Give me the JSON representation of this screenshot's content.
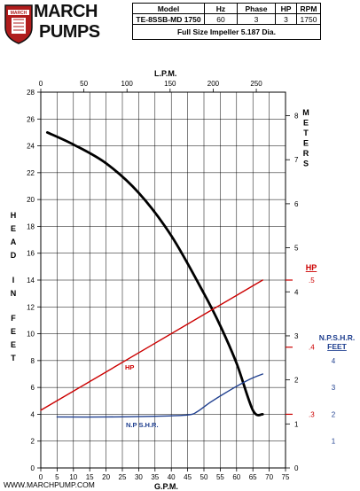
{
  "brand": {
    "line1": "MARCH",
    "line2": "PUMPS",
    "badge": "MARCH"
  },
  "spec_table": {
    "headers": [
      "Model",
      "Hz",
      "Phase",
      "HP",
      "RPM"
    ],
    "row": [
      "TE-8SSB-MD 1750",
      "60",
      "3",
      "3",
      "1750"
    ],
    "impeller": "Full Size Impeller 5.187 Dia."
  },
  "footer_url": "WWW.MARCHPUMP.COM",
  "colors": {
    "head": "#000000",
    "hp": "#cc0000",
    "npshr": "#1f3f8f"
  },
  "chart_data": {
    "type": "line",
    "x_label": "G.P.M.",
    "x_ticks": [
      0,
      5,
      10,
      15,
      20,
      25,
      30,
      35,
      40,
      45,
      50,
      55,
      60,
      65,
      70,
      75
    ],
    "xlim": [
      0,
      75
    ],
    "top_label": "L.P.M.",
    "top_ticks": [
      0,
      50,
      100,
      150,
      200,
      250
    ],
    "y_label": "HEAD IN FEET",
    "y_ticks": [
      0,
      2,
      4,
      6,
      8,
      10,
      12,
      14,
      16,
      18,
      20,
      22,
      24,
      26,
      28
    ],
    "ylim": [
      0,
      28
    ],
    "right_label": "METERS",
    "right_ticks": [
      0,
      1,
      2,
      3,
      4,
      5,
      6,
      7,
      8
    ],
    "hp_label": "HP",
    "hp_ticks": [
      ".3",
      ".4",
      ".5"
    ],
    "npshr_axis_label": [
      "N.P.S.H.R.",
      "FEET"
    ],
    "npshr_ticks": [
      "1",
      "2",
      "3",
      "4"
    ],
    "grid": true,
    "series": [
      {
        "name": "HEAD",
        "points": [
          [
            2,
            25
          ],
          [
            10,
            24.1
          ],
          [
            20,
            22.7
          ],
          [
            30,
            20.5
          ],
          [
            40,
            17.3
          ],
          [
            50,
            13
          ],
          [
            55,
            10.6
          ],
          [
            60,
            7.8
          ],
          [
            65,
            4.3
          ],
          [
            68,
            4
          ]
        ]
      },
      {
        "name": "HP",
        "points": [
          [
            0,
            4.3
          ],
          [
            68,
            14
          ]
        ]
      },
      {
        "name": "N.P S.H.R.",
        "points": [
          [
            5,
            3.8
          ],
          [
            20,
            3.8
          ],
          [
            35,
            3.85
          ],
          [
            45,
            3.95
          ],
          [
            48,
            4.2
          ],
          [
            52,
            4.9
          ],
          [
            58,
            5.8
          ],
          [
            64,
            6.6
          ],
          [
            68,
            7
          ]
        ]
      }
    ],
    "annotations": {
      "hp_curve_label": "HP",
      "npshr_curve_label": "N.P S.H.R."
    }
  }
}
